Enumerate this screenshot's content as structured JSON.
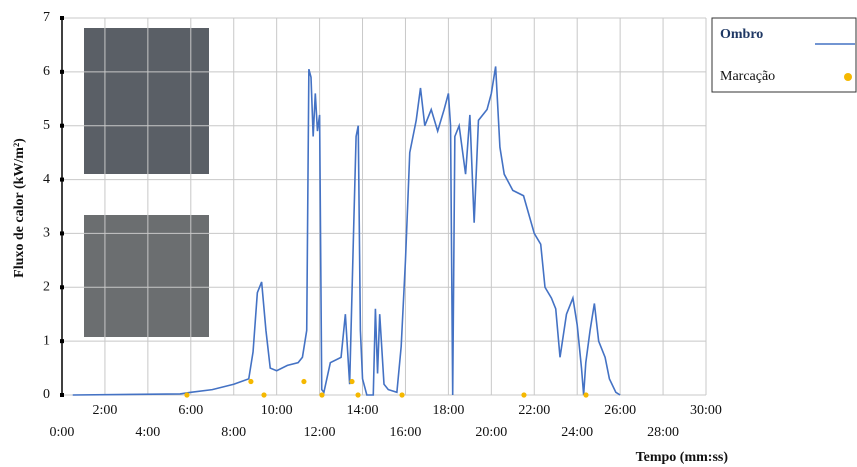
{
  "chart_data": {
    "type": "line",
    "y_label": "Fluxo de calor (kW/m²)",
    "x_label": "Tempo (mm:ss)",
    "xlim": [
      0,
      30
    ],
    "ylim": [
      0,
      7
    ],
    "yticks": [
      0,
      1,
      2,
      3,
      4,
      5,
      6,
      7
    ],
    "xticks": [
      {
        "value": 0,
        "label": "0:00"
      },
      {
        "value": 2,
        "label": "2:00"
      },
      {
        "value": 4,
        "label": "4:00"
      },
      {
        "value": 6,
        "label": "6:00"
      },
      {
        "value": 8,
        "label": "8:00"
      },
      {
        "value": 10,
        "label": "10:00"
      },
      {
        "value": 12,
        "label": "12:00"
      },
      {
        "value": 14,
        "label": "14:00"
      },
      {
        "value": 16,
        "label": "16:00"
      },
      {
        "value": 18,
        "label": "18:00"
      },
      {
        "value": 20,
        "label": "20:00"
      },
      {
        "value": 22,
        "label": "22:00"
      },
      {
        "value": 24,
        "label": "24:00"
      },
      {
        "value": 26,
        "label": "26:00"
      },
      {
        "value": 28,
        "label": "28:00"
      },
      {
        "value": 30,
        "label": "30:00"
      }
    ],
    "grid": true,
    "series": [
      {
        "name": "Ombro",
        "color": "#4472c4",
        "style": "line",
        "x": [
          0.5,
          5.5,
          6.0,
          7,
          8,
          8.7,
          8.9,
          9.1,
          9.3,
          9.5,
          9.7,
          10,
          10.5,
          11,
          11.2,
          11.4,
          11.5,
          11.6,
          11.7,
          11.8,
          11.9,
          12,
          12.1,
          12.2,
          12.5,
          13,
          13.2,
          13.4,
          13.6,
          13.7,
          13.8,
          13.9,
          14.0,
          14.2,
          14.5,
          14.6,
          14.7,
          14.8,
          15.0,
          15.2,
          15.6,
          15.8,
          16,
          16.2,
          16.5,
          16.7,
          16.9,
          17.2,
          17.5,
          17.8,
          18,
          18.1,
          18.2,
          18.3,
          18.5,
          18.8,
          19,
          19.2,
          19.4,
          19.8,
          20,
          20.2,
          20.4,
          20.6,
          21,
          21.5,
          22,
          22.3,
          22.5,
          22.8,
          23,
          23.2,
          23.5,
          23.8,
          24,
          24.2,
          24.3,
          24.4,
          24.6,
          24.8,
          25,
          25.3,
          25.5,
          25.8,
          26
        ],
        "values": [
          0,
          0.02,
          0.05,
          0.1,
          0.2,
          0.3,
          0.8,
          1.9,
          2.1,
          1.2,
          0.5,
          0.45,
          0.55,
          0.6,
          0.7,
          1.2,
          6.05,
          5.9,
          4.8,
          5.6,
          4.9,
          5.2,
          0.1,
          0.05,
          0.6,
          0.7,
          1.5,
          0.2,
          3.3,
          4.8,
          5.0,
          1.2,
          0.3,
          0,
          0,
          1.6,
          0.4,
          1.5,
          0.2,
          0.1,
          0.05,
          0.9,
          2.5,
          4.5,
          5.1,
          5.7,
          5.0,
          5.3,
          4.9,
          5.3,
          5.6,
          5.0,
          0,
          4.8,
          5.0,
          4.1,
          5.2,
          3.2,
          5.1,
          5.3,
          5.6,
          6.1,
          4.6,
          4.1,
          3.8,
          3.7,
          3.0,
          2.8,
          2.0,
          1.8,
          1.6,
          0.7,
          1.5,
          1.8,
          1.3,
          0.5,
          0,
          0.6,
          1.2,
          1.7,
          1.0,
          0.7,
          0.3,
          0.05,
          0
        ]
      },
      {
        "name": "Marcação",
        "color": "#f5b800",
        "style": "points",
        "x": [
          5.82,
          8.8,
          9.41,
          11.27,
          12.11,
          13.51,
          13.79,
          15.84,
          21.52,
          24.41
        ],
        "values": [
          0,
          0.25,
          0,
          0.25,
          0,
          0.25,
          0,
          0,
          0,
          0
        ]
      }
    ]
  }
}
